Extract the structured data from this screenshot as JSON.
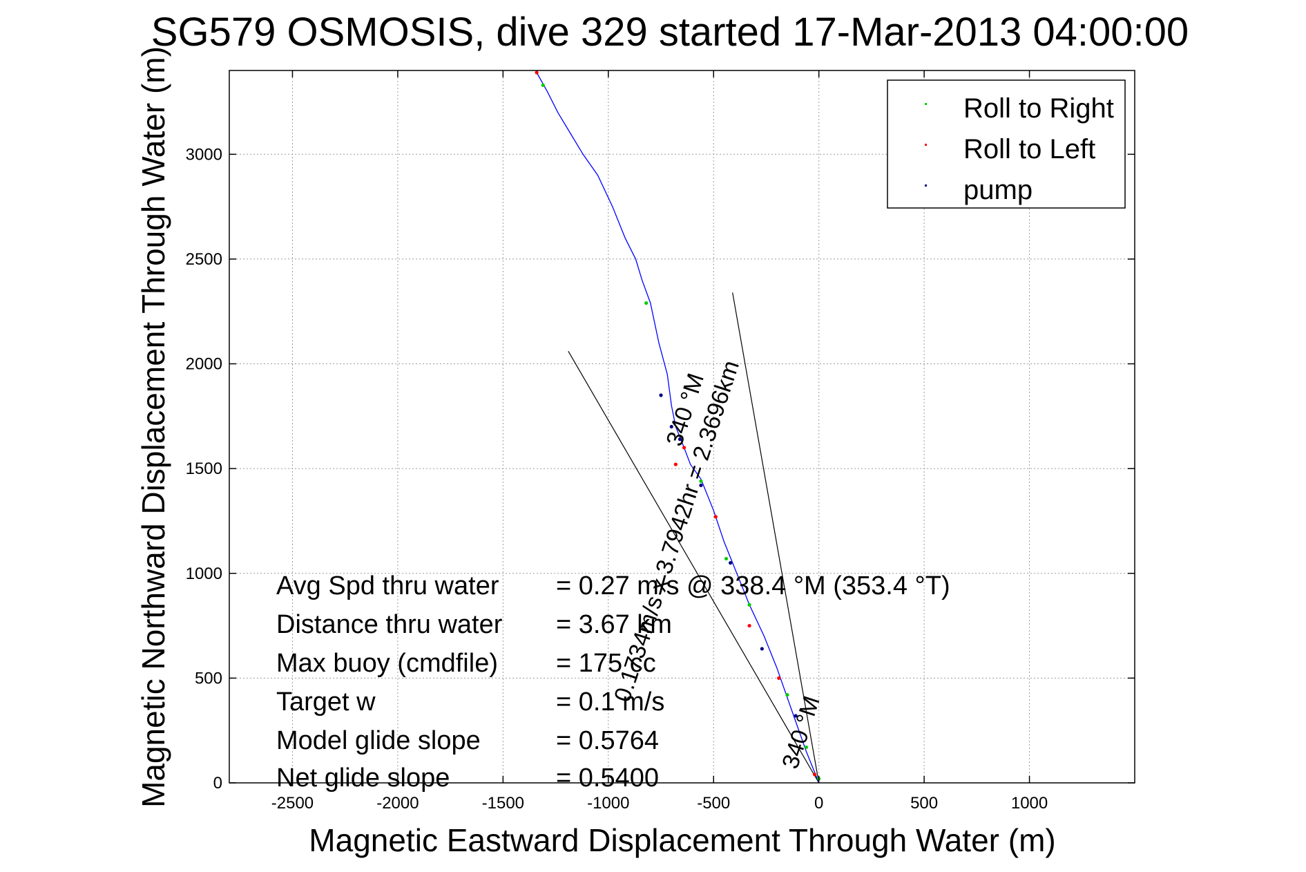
{
  "chart_data": {
    "type": "line",
    "title": "SG579 OSMOSIS, dive 329 started 17-Mar-2013 04:00:00",
    "xlabel": "Magnetic Eastward Displacement Through Water (m)",
    "ylabel": "Magnetic Northward Displacement Through Water (m)",
    "xlim": [
      -2800,
      1500
    ],
    "ylim": [
      0,
      3400
    ],
    "xticks": [
      -2500,
      -2000,
      -1500,
      -1000,
      -500,
      0,
      500,
      1000
    ],
    "yticks": [
      0,
      500,
      1000,
      1500,
      2000,
      2500,
      3000
    ],
    "xtick_labels": [
      "-2500",
      "-2000",
      "-1500",
      "-1000",
      "-500",
      "0",
      "500",
      "1000"
    ],
    "ytick_labels": [
      "0",
      "500",
      "1000",
      "1500",
      "2000",
      "2500",
      "3000"
    ],
    "grid": true,
    "legend_position": "top-right",
    "series": [
      {
        "name": "track",
        "color": "#0000ff",
        "x": [
          0,
          -60,
          -130,
          -200,
          -260,
          -330,
          -390,
          -450,
          -500,
          -560,
          -610,
          -640,
          -680,
          -700,
          -720,
          -760,
          -800,
          -840,
          -870,
          -920,
          -980,
          -1050,
          -1120,
          -1180,
          -1240,
          -1290,
          -1340
        ],
        "y": [
          0,
          150,
          350,
          550,
          700,
          850,
          1000,
          1150,
          1300,
          1450,
          1520,
          1600,
          1700,
          1800,
          1950,
          2100,
          2290,
          2400,
          2500,
          2600,
          2750,
          2900,
          3000,
          3100,
          3200,
          3300,
          3390
        ]
      }
    ],
    "legend": [
      {
        "label": "Roll to Right",
        "color": "#00cc00"
      },
      {
        "label": "Roll to Left",
        "color": "#ff0000"
      },
      {
        "label": "pump",
        "color": "#000080"
      }
    ],
    "markers": {
      "roll_right": {
        "color": "#00cc00",
        "x": [
          0,
          -60,
          -150,
          -330,
          -440,
          -560,
          -820,
          -1310
        ],
        "y": [
          20,
          170,
          420,
          850,
          1070,
          1440,
          2290,
          3330
        ]
      },
      "roll_left": {
        "color": "#ff0000",
        "x": [
          -20,
          -190,
          -330,
          -490,
          -640,
          -680,
          -1340
        ],
        "y": [
          40,
          500,
          750,
          1270,
          1600,
          1520,
          3390
        ]
      },
      "pump": {
        "color": "#000080",
        "x": [
          -110,
          -270,
          -420,
          -560,
          -660,
          -700,
          -750
        ],
        "y": [
          320,
          640,
          1050,
          1420,
          1640,
          1700,
          1850
        ]
      }
    },
    "cone_lines": {
      "color": "#000000",
      "lines": [
        {
          "x": [
            0,
            -1190
          ],
          "y": [
            0,
            2060
          ]
        },
        {
          "x": [
            0,
            -410
          ],
          "y": [
            0,
            2340
          ]
        }
      ]
    },
    "annotations": [
      {
        "text": "340 °M",
        "x": -50,
        "y": 230,
        "angle": -72
      },
      {
        "text": "0.1734m/s x 3.7942hr = 2.3696km",
        "x": -640,
        "y": 1190,
        "angle": -72
      },
      {
        "text": "340 °M",
        "x": -600,
        "y": 1770,
        "angle": -72
      }
    ],
    "stats": [
      {
        "label": "Avg Spd thru water",
        "value": "=  0.27 m/s @ 338.4 °M (353.4 °T)"
      },
      {
        "label": "Distance thru water",
        "value": "=  3.67 km"
      },
      {
        "label": "Max buoy (cmdfile)",
        "value": "= 175 cc"
      },
      {
        "label": "Target w",
        "value": "= 0.1 m/s"
      },
      {
        "label": "Model glide slope",
        "value": "= 0.5764"
      },
      {
        "label": "Net glide slope",
        "value": "= 0.5400"
      }
    ]
  }
}
